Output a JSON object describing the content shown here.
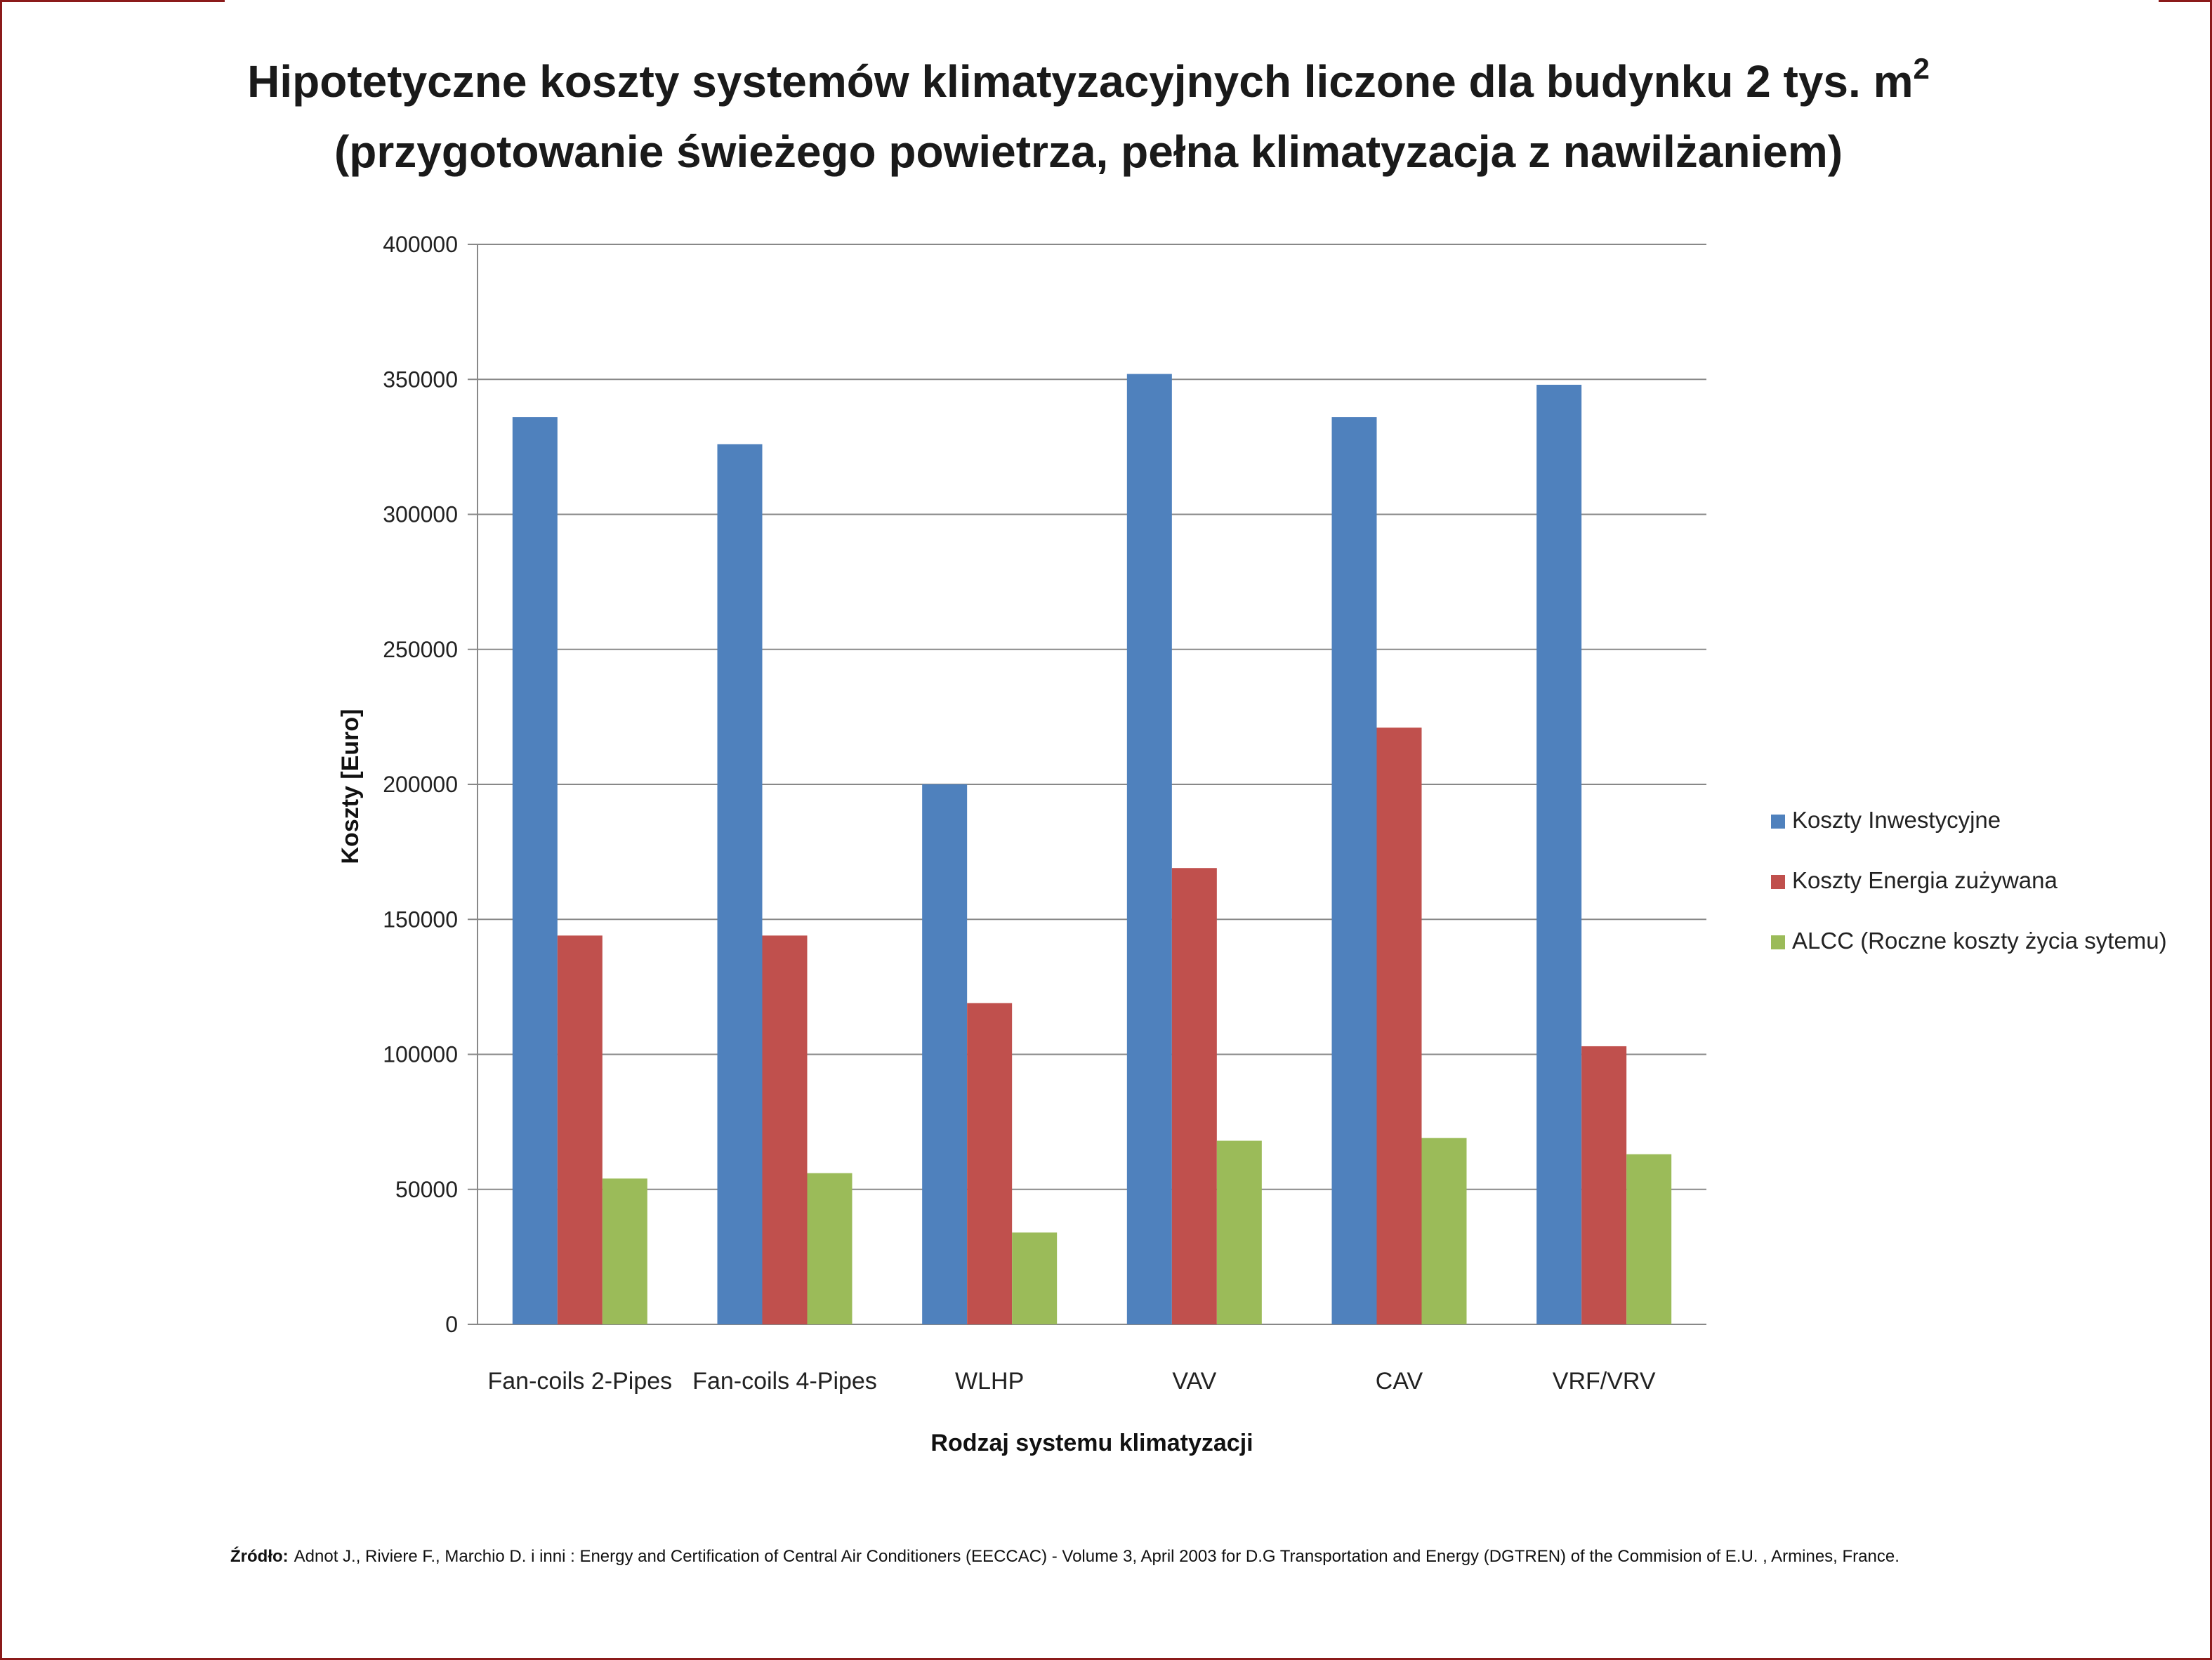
{
  "chart_data": {
    "type": "bar",
    "title_line1": "Hipotetyczne koszty systemów klimatyzacyjnych liczone dla budynku 2 tys. m",
    "title_superscript": "2",
    "title_line2": "(przygotowanie świeżego powietrza, pełna klimatyzacja z nawilżaniem)",
    "xlabel": "Rodzaj systemu klimatyzacji",
    "ylabel": "Koszty [Euro]",
    "ylim": [
      0,
      400000
    ],
    "yticks": [
      "0",
      "50000",
      "100000",
      "150000",
      "200000",
      "250000",
      "300000",
      "350000",
      "400000"
    ],
    "grid": true,
    "legend_position": "right",
    "categories": [
      "Fan-coils  2-Pipes",
      "Fan-coils  4-Pipes",
      "WLHP",
      "VAV",
      "CAV",
      "VRF/VRV"
    ],
    "series": [
      {
        "name": "Koszty Inwestycyjne",
        "color": "#4f81bd",
        "values": [
          336000,
          326000,
          200000,
          352000,
          336000,
          348000
        ]
      },
      {
        "name": "Koszty Energia zużywana",
        "color": "#c0504d",
        "values": [
          144000,
          144000,
          119000,
          169000,
          221000,
          103000
        ]
      },
      {
        "name": "ALCC (Roczne koszty  życia sytemu)",
        "color": "#9bbb59",
        "values": [
          54000,
          56000,
          34000,
          68000,
          69000,
          63000
        ]
      }
    ],
    "source_label": "Źródło:",
    "source_text": "Adnot J., Riviere F., Marchio D. i inni : Energy and  Certification of Central Air Conditioners (EECCAC) - Volume 3, April 2003 for D.G Transportation and Energy (DGTREN) of the Commision of E.U. , Armines, France."
  }
}
